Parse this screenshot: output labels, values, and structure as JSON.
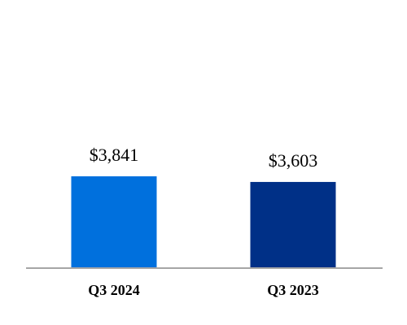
{
  "chart_data": {
    "type": "bar",
    "categories": [
      "Q3 2024",
      "Q3 2023"
    ],
    "values": [
      3841,
      3603
    ],
    "value_labels": [
      "$3,841",
      "$3,603"
    ],
    "colors": [
      "#0070dd",
      "#003087"
    ]
  }
}
